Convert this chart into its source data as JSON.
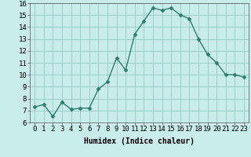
{
  "xlabel": "Humidex (Indice chaleur)",
  "x": [
    0,
    1,
    2,
    3,
    4,
    5,
    6,
    7,
    8,
    9,
    10,
    11,
    12,
    13,
    14,
    15,
    16,
    17,
    18,
    19,
    20,
    21,
    22,
    23
  ],
  "y": [
    7.3,
    7.5,
    6.5,
    7.7,
    7.1,
    7.2,
    7.2,
    8.8,
    9.4,
    11.4,
    10.4,
    13.4,
    14.5,
    15.6,
    15.4,
    15.6,
    15.0,
    14.7,
    13.0,
    11.7,
    11.0,
    10.0,
    10.0,
    9.8
  ],
  "line_color": "#2e7d6d",
  "marker": "D",
  "marker_size": 2.5,
  "bg_color": "#c8ecea",
  "grid_color": "#9dcfcb",
  "ylim": [
    6,
    16
  ],
  "xlim": [
    -0.5,
    23.5
  ],
  "yticks": [
    6,
    7,
    8,
    9,
    10,
    11,
    12,
    13,
    14,
    15,
    16
  ],
  "xticks": [
    0,
    1,
    2,
    3,
    4,
    5,
    6,
    7,
    8,
    9,
    10,
    11,
    12,
    13,
    14,
    15,
    16,
    17,
    18,
    19,
    20,
    21,
    22,
    23
  ],
  "xlabel_fontsize": 7,
  "tick_fontsize": 6.5
}
